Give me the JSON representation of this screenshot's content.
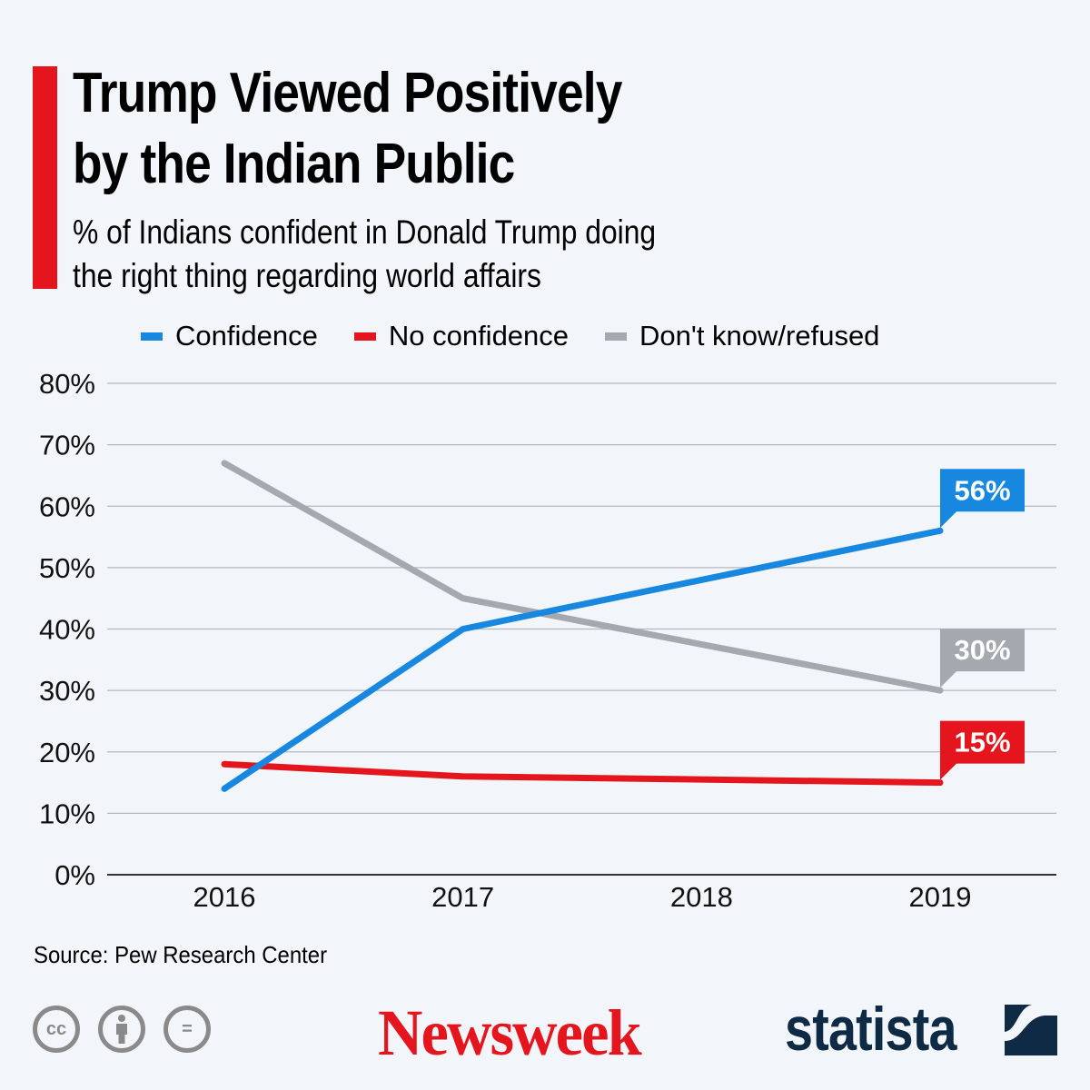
{
  "header": {
    "title_line1": "Trump Viewed Positively",
    "title_line2": "by the Indian Public",
    "subtitle_line1": "% of Indians confident in Donald Trump doing",
    "subtitle_line2": "the right thing regarding world affairs",
    "accent_color": "#e5151e"
  },
  "footer": {
    "source": "Source: Pew Research Center",
    "license_icons": [
      "cc-icon",
      "attribution-icon",
      "no-derivatives-icon"
    ],
    "brand1": "Newsweek",
    "brand2": "statista",
    "cc_label": "cc",
    "nd_label": "="
  },
  "chart_data": {
    "type": "line",
    "title": "Trump Viewed Positively by the Indian Public",
    "subtitle": "% of Indians confident in Donald Trump doing the right thing regarding world affairs",
    "xlabel": "",
    "ylabel": "",
    "x_ticks": [
      "2016",
      "2017",
      "2018",
      "2019"
    ],
    "y_ticks": [
      "0%",
      "10%",
      "20%",
      "30%",
      "40%",
      "50%",
      "60%",
      "70%",
      "80%"
    ],
    "ylim": [
      0,
      80
    ],
    "xlim": [
      2016,
      2019
    ],
    "grid": true,
    "legend_position": "top",
    "series": [
      {
        "name": "Confidence",
        "color": "#1787e0",
        "x": [
          2016,
          2017,
          2019
        ],
        "values": [
          14,
          40,
          56
        ],
        "end_label": "56%"
      },
      {
        "name": "No confidence",
        "color": "#e5151e",
        "x": [
          2016,
          2017,
          2019
        ],
        "values": [
          18,
          16,
          15
        ],
        "end_label": "15%"
      },
      {
        "name": "Don't know/refused",
        "color": "#a3a9ae",
        "x": [
          2016,
          2017,
          2019
        ],
        "values": [
          67,
          45,
          30
        ],
        "end_label": "30%"
      }
    ],
    "source": "Pew Research Center"
  }
}
